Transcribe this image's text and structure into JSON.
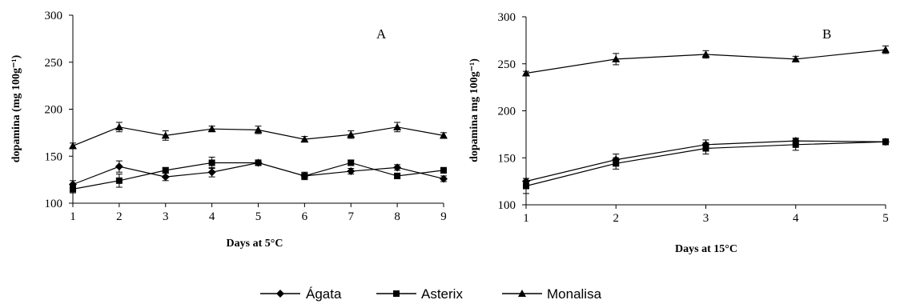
{
  "chart_data": [
    {
      "type": "line",
      "panel_label": "A",
      "xlabel": "Days at 5°C",
      "ylabel": "dopamina (mg 100g⁻¹)",
      "x": [
        1,
        2,
        3,
        4,
        5,
        6,
        7,
        8,
        9
      ],
      "xlim": [
        1,
        9
      ],
      "ylim": [
        100,
        300
      ],
      "yticks": [
        100,
        150,
        200,
        250,
        300
      ],
      "series": [
        {
          "name": "Ágata",
          "marker": "diamond",
          "values": [
            120,
            139,
            128,
            133,
            143,
            129,
            134,
            138,
            126
          ],
          "error": [
            4,
            6,
            4,
            5,
            3,
            3,
            3,
            3,
            3
          ]
        },
        {
          "name": "Asterix",
          "marker": "square",
          "values": [
            115,
            124,
            135,
            143,
            143,
            129,
            143,
            129,
            135
          ],
          "error": [
            4,
            7,
            3,
            6,
            3,
            4,
            3,
            3,
            3
          ]
        },
        {
          "name": "Monalisa",
          "marker": "triangle",
          "values": [
            161,
            181,
            172,
            179,
            178,
            168,
            173,
            181,
            172
          ],
          "error": [
            3,
            5,
            5,
            3,
            4,
            3,
            4,
            5,
            3
          ]
        }
      ]
    },
    {
      "type": "line",
      "panel_label": "B",
      "xlabel": "Days at 15°C",
      "ylabel": "dopamina mg 100g⁻¹)",
      "x": [
        1,
        2,
        3,
        4,
        5
      ],
      "xlim": [
        1,
        5
      ],
      "ylim": [
        100,
        300
      ],
      "yticks": [
        100,
        150,
        200,
        250,
        300
      ],
      "series": [
        {
          "name": "Ágata",
          "marker": "diamond",
          "values": [
            125,
            148,
            164,
            168,
            167
          ],
          "error": [
            3,
            6,
            5,
            3,
            3
          ]
        },
        {
          "name": "Asterix",
          "marker": "square",
          "values": [
            120,
            144,
            160,
            164,
            167
          ],
          "error": [
            8,
            6,
            6,
            6,
            3
          ]
        },
        {
          "name": "Monalisa",
          "marker": "triangle",
          "values": [
            240,
            255,
            260,
            255,
            265
          ],
          "error": [
            2,
            6,
            4,
            3,
            4
          ]
        }
      ]
    }
  ],
  "legend": {
    "placement": "bottom-center",
    "items": [
      {
        "label": "Ágata",
        "marker": "diamond"
      },
      {
        "label": "Asterix",
        "marker": "square"
      },
      {
        "label": "Monalisa",
        "marker": "triangle"
      }
    ]
  }
}
